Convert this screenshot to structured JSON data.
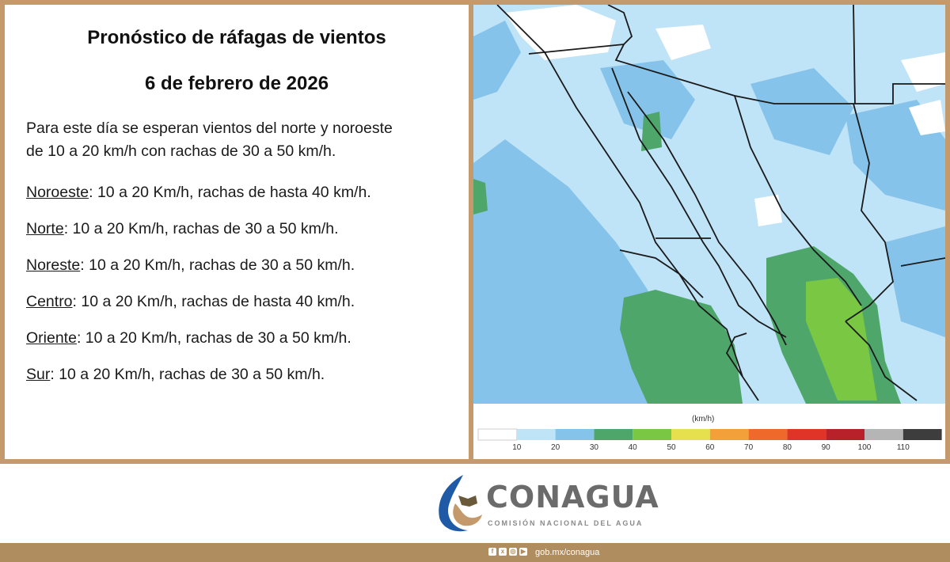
{
  "header": {
    "title": "Pronóstico de ráfagas de vientos",
    "date": "6 de febrero de 2026"
  },
  "intro_line1": "Para este día se esperan vientos del norte y noroeste",
  "intro_line2": "de 10 a 20 km/h con rachas de 30 a 50 km/h.",
  "regions": [
    {
      "name": "Noroeste",
      "text": ":  10 a 20 Km/h, rachas de hasta 40 km/h."
    },
    {
      "name": "Norte",
      "text": ": 10 a 20 Km/h, rachas de 30 a 50 km/h."
    },
    {
      "name": "Noreste",
      "text": ": 10 a 20 Km/h, rachas de 30 a 50 km/h."
    },
    {
      "name": "Centro",
      "text": ":  10 a 20 Km/h, rachas de hasta 40 km/h."
    },
    {
      "name": "Oriente",
      "text": ":  10 a 20 Km/h, rachas de 30 a 50 km/h."
    },
    {
      "name": "Sur",
      "text": ":  10 a 20 Km/h, rachas de 30 a 50 km/h."
    }
  ],
  "legend": {
    "unit": "(km/h)",
    "ticks": [
      "10",
      "20",
      "30",
      "40",
      "50",
      "60",
      "70",
      "80",
      "90",
      "100",
      "110"
    ],
    "colors": [
      "#ffffff",
      "#bfe3f7",
      "#86c3ea",
      "#4fa66b",
      "#7ac744",
      "#e6e04f",
      "#f4a03a",
      "#ef6a2a",
      "#e03428",
      "#b8202a",
      "#b5b5b5",
      "#3d3d3d"
    ]
  },
  "footer": {
    "brand": "CONAGUA",
    "brand_subtitle": "COMISIÓN NACIONAL DEL AGUA",
    "url": "gob.mx/conagua",
    "social_icons": [
      "facebook-icon",
      "x-icon",
      "instagram-icon",
      "youtube-icon"
    ]
  },
  "colors": {
    "frame": "#c49a6c",
    "bar": "#b08d5f",
    "map_light": "#bfe3f7",
    "map_mid": "#86c3ea",
    "map_green": "#4fa66b",
    "map_lightgreen": "#7ac744"
  }
}
